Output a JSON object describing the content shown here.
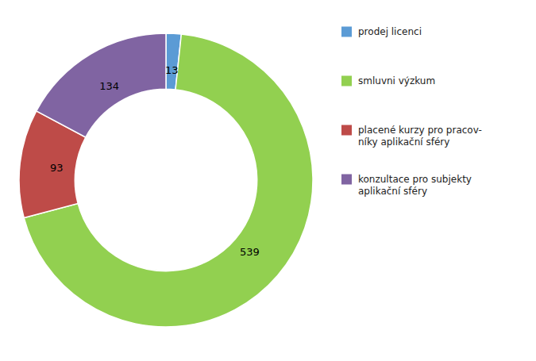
{
  "chart_data": {
    "type": "donut",
    "categories": [
      "prodej licenci",
      "smluvni výzkum",
      "placené kurzy pro pracov-\nníky aplikační sféry",
      "konzultace pro subjekty\naplikační sféry"
    ],
    "values": [
      13,
      539,
      93,
      134
    ],
    "colors": [
      "#5B9BD5",
      "#92D050",
      "#BE4B48",
      "#8064A2"
    ],
    "data_labels": true,
    "legend": "right"
  }
}
